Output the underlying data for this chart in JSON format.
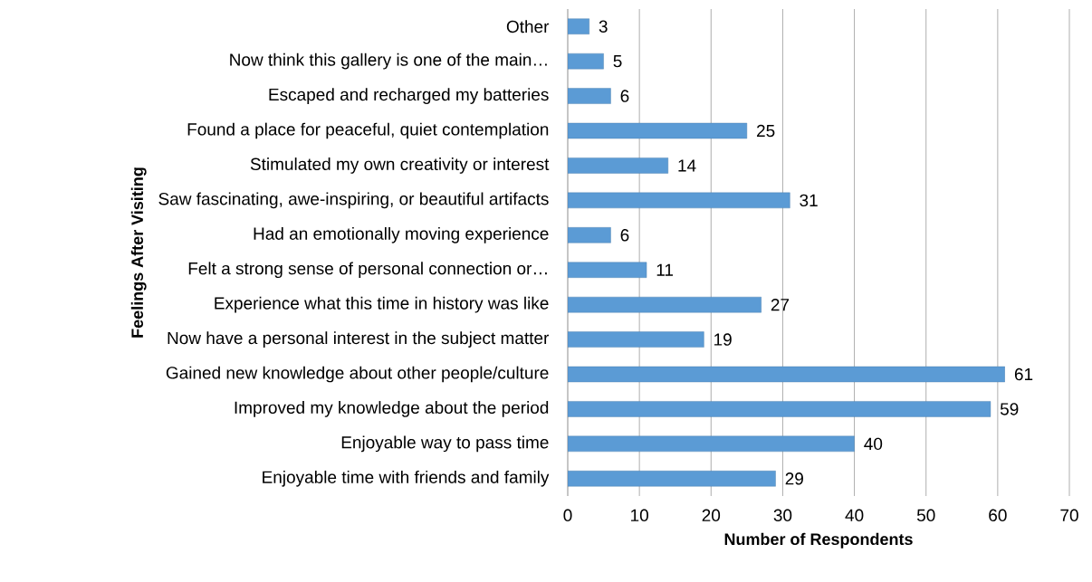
{
  "chart_data": {
    "type": "bar",
    "orientation": "horizontal",
    "xlabel": "Number of Respondents",
    "ylabel": "Feelings After Visiting",
    "categories": [
      "Other",
      "Now think this gallery is one of the main…",
      "Escaped and recharged my batteries",
      "Found a place for peaceful, quiet contemplation",
      "Stimulated my own creativity or interest",
      "Saw fascinating, awe-inspiring, or beautiful artifacts",
      "Had an emotionally moving experience",
      "Felt a strong sense of personal connection or…",
      "Experience what this time in history was like",
      "Now have a personal interest in the subject matter",
      "Gained new knowledge about other people/culture",
      "Improved my knowledge about the period",
      "Enjoyable way to pass time",
      "Enjoyable time with friends and family"
    ],
    "values": [
      3,
      5,
      6,
      25,
      14,
      31,
      6,
      11,
      27,
      19,
      61,
      59,
      40,
      29
    ],
    "color": "#5b9bd5",
    "xlim": [
      0,
      70
    ],
    "xticks": [
      0,
      10,
      20,
      30,
      40,
      50,
      60,
      70
    ],
    "grid": "x",
    "data_labels": true
  }
}
